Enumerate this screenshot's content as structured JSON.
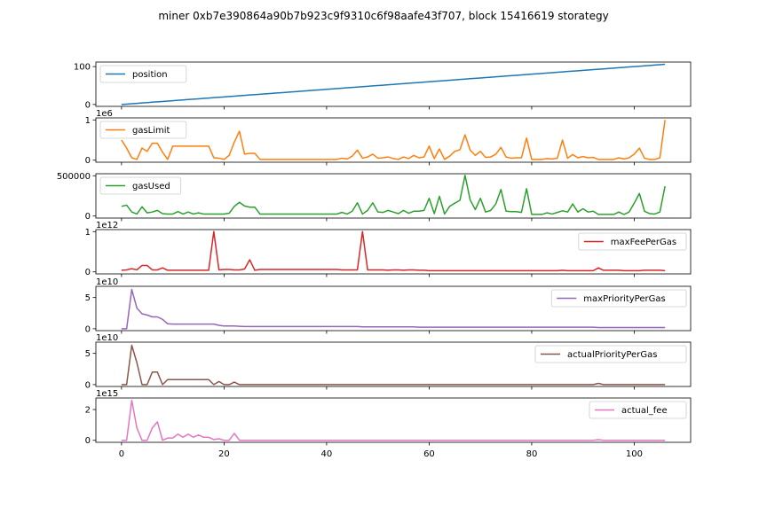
{
  "chart_data": {
    "type": "line",
    "title": "miner 0xb7e390864a90b7b923c9f9310c6f98aafe43f707, block 15416619 storategy",
    "x": {
      "ticks": [
        0,
        20,
        40,
        60,
        80,
        100
      ],
      "tick_labels": [
        "0",
        "20",
        "40",
        "60",
        "80",
        "100"
      ],
      "range": [
        -5,
        111
      ]
    },
    "grid": false,
    "subplots": [
      {
        "name": "position",
        "color": "#1f77b4",
        "legend": "top-left",
        "scale_label": "",
        "y_ticks": [
          0,
          100
        ],
        "y_tick_labels": [
          "0",
          "100"
        ],
        "y_range": [
          -5,
          112
        ],
        "values": [
          0,
          1,
          2,
          3,
          4,
          5,
          6,
          7,
          8,
          9,
          10,
          11,
          12,
          13,
          14,
          15,
          16,
          17,
          18,
          19,
          20,
          21,
          22,
          23,
          24,
          25,
          26,
          27,
          28,
          29,
          30,
          31,
          32,
          33,
          34,
          35,
          36,
          37,
          38,
          39,
          40,
          41,
          42,
          43,
          44,
          45,
          46,
          47,
          48,
          49,
          50,
          51,
          52,
          53,
          54,
          55,
          56,
          57,
          58,
          59,
          60,
          61,
          62,
          63,
          64,
          65,
          66,
          67,
          68,
          69,
          70,
          71,
          72,
          73,
          74,
          75,
          76,
          77,
          78,
          79,
          80,
          81,
          82,
          83,
          84,
          85,
          86,
          87,
          88,
          89,
          90,
          91,
          92,
          93,
          94,
          95,
          96,
          97,
          98,
          99,
          100,
          101,
          102,
          103,
          104,
          105,
          106
        ]
      },
      {
        "name": "gasLimit",
        "color": "#ff7f0e",
        "legend": "top-left",
        "scale_label": "1e6",
        "y_ticks": [
          0,
          1
        ],
        "y_tick_labels": [
          "0",
          "1"
        ],
        "y_range": [
          -0.05,
          1.05
        ],
        "values": [
          0.5,
          0.3,
          0.06,
          0.02,
          0.3,
          0.22,
          0.42,
          0.42,
          0.2,
          0.02,
          0.35,
          0.35,
          0.35,
          0.35,
          0.35,
          0.35,
          0.35,
          0.35,
          0.06,
          0.05,
          0.02,
          0.12,
          0.45,
          0.72,
          0.15,
          0.17,
          0.17,
          0.02,
          0.02,
          0.02,
          0.02,
          0.02,
          0.02,
          0.02,
          0.02,
          0.02,
          0.02,
          0.02,
          0.02,
          0.02,
          0.02,
          0.02,
          0.02,
          0.05,
          0.03,
          0.1,
          0.25,
          0.05,
          0.08,
          0.15,
          0.05,
          0.06,
          0.08,
          0.04,
          0.02,
          0.08,
          0.04,
          0.12,
          0.06,
          0.08,
          0.35,
          0.04,
          0.28,
          0.02,
          0.1,
          0.22,
          0.26,
          0.63,
          0.25,
          0.12,
          0.22,
          0.07,
          0.08,
          0.15,
          0.32,
          0.08,
          0.05,
          0.06,
          0.06,
          0.55,
          0.02,
          0.02,
          0.02,
          0.04,
          0.03,
          0.05,
          0.5,
          0.05,
          0.14,
          0.06,
          0.09,
          0.06,
          0.07,
          0.02,
          0.02,
          0.02,
          0.02,
          0.06,
          0.03,
          0.06,
          0.15,
          0.3,
          0.05,
          0.02,
          0.02,
          0.06,
          1.0
        ]
      },
      {
        "name": "gasUsed",
        "color": "#2ca02c",
        "legend": "top-left",
        "scale_label": "",
        "y_ticks": [
          0,
          500000
        ],
        "y_tick_labels": [
          "0",
          "500000"
        ],
        "y_range": [
          -25000,
          525000
        ],
        "values": [
          120000,
          135000,
          50000,
          25000,
          115000,
          40000,
          50000,
          70000,
          30000,
          25000,
          25000,
          55000,
          25000,
          50000,
          25000,
          40000,
          25000,
          25000,
          25000,
          25000,
          25000,
          35000,
          120000,
          170000,
          125000,
          110000,
          110000,
          25000,
          25000,
          25000,
          25000,
          25000,
          25000,
          25000,
          25000,
          25000,
          25000,
          25000,
          25000,
          25000,
          25000,
          25000,
          25000,
          45000,
          25000,
          60000,
          165000,
          25000,
          70000,
          165000,
          50000,
          45000,
          70000,
          50000,
          30000,
          70000,
          35000,
          60000,
          60000,
          70000,
          220000,
          30000,
          245000,
          25000,
          120000,
          160000,
          195000,
          505000,
          200000,
          80000,
          220000,
          50000,
          70000,
          150000,
          330000,
          60000,
          55000,
          55000,
          45000,
          340000,
          20000,
          20000,
          20000,
          40000,
          25000,
          45000,
          65000,
          50000,
          150000,
          50000,
          90000,
          50000,
          60000,
          20000,
          20000,
          20000,
          20000,
          50000,
          20000,
          50000,
          160000,
          280000,
          60000,
          30000,
          25000,
          50000,
          370000
        ]
      },
      {
        "name": "maxFeePerGas",
        "color": "#d62728",
        "legend": "top-right",
        "scale_label": "1e12",
        "y_ticks": [
          0,
          1
        ],
        "y_tick_labels": [
          "0",
          "1"
        ],
        "y_range": [
          -0.05,
          1.05
        ],
        "values": [
          0.04,
          0.05,
          0.08,
          0.05,
          0.16,
          0.16,
          0.05,
          0.05,
          0.1,
          0.04,
          0.04,
          0.04,
          0.04,
          0.04,
          0.04,
          0.04,
          0.04,
          0.04,
          1.0,
          0.05,
          0.06,
          0.06,
          0.05,
          0.05,
          0.07,
          0.3,
          0.04,
          0.06,
          0.06,
          0.06,
          0.06,
          0.06,
          0.06,
          0.06,
          0.06,
          0.06,
          0.06,
          0.06,
          0.06,
          0.06,
          0.06,
          0.06,
          0.06,
          0.05,
          0.05,
          0.05,
          0.05,
          1.0,
          0.05,
          0.05,
          0.05,
          0.05,
          0.04,
          0.05,
          0.05,
          0.04,
          0.05,
          0.05,
          0.04,
          0.04,
          0.03,
          0.03,
          0.03,
          0.03,
          0.03,
          0.03,
          0.03,
          0.03,
          0.03,
          0.03,
          0.03,
          0.03,
          0.03,
          0.03,
          0.03,
          0.03,
          0.03,
          0.03,
          0.03,
          0.03,
          0.03,
          0.03,
          0.03,
          0.03,
          0.03,
          0.03,
          0.04,
          0.03,
          0.03,
          0.03,
          0.03,
          0.03,
          0.03,
          0.1,
          0.04,
          0.04,
          0.04,
          0.04,
          0.03,
          0.03,
          0.03,
          0.03,
          0.04,
          0.04,
          0.04,
          0.04,
          0.03
        ]
      },
      {
        "name": "maxPriorityPerGas",
        "color": "#9467bd",
        "legend": "top-right",
        "scale_label": "1e10",
        "y_ticks": [
          0,
          5
        ],
        "y_tick_labels": [
          "0",
          "5"
        ],
        "y_range": [
          -0.3,
          6.8
        ],
        "values": [
          0.0,
          0.0,
          6.3,
          3.3,
          2.4,
          2.2,
          1.9,
          1.9,
          1.5,
          0.8,
          0.75,
          0.75,
          0.75,
          0.75,
          0.75,
          0.75,
          0.75,
          0.75,
          0.75,
          0.55,
          0.45,
          0.45,
          0.45,
          0.4,
          0.35,
          0.35,
          0.35,
          0.35,
          0.35,
          0.35,
          0.35,
          0.35,
          0.35,
          0.35,
          0.35,
          0.35,
          0.35,
          0.35,
          0.35,
          0.35,
          0.35,
          0.35,
          0.35,
          0.35,
          0.35,
          0.35,
          0.35,
          0.3,
          0.3,
          0.3,
          0.3,
          0.3,
          0.3,
          0.3,
          0.3,
          0.3,
          0.3,
          0.3,
          0.25,
          0.25,
          0.25,
          0.25,
          0.25,
          0.25,
          0.25,
          0.25,
          0.25,
          0.25,
          0.25,
          0.25,
          0.25,
          0.25,
          0.25,
          0.25,
          0.25,
          0.25,
          0.25,
          0.25,
          0.25,
          0.25,
          0.25,
          0.25,
          0.25,
          0.25,
          0.25,
          0.25,
          0.25,
          0.25,
          0.25,
          0.25,
          0.25,
          0.25,
          0.25,
          0.2,
          0.2,
          0.2,
          0.2,
          0.2,
          0.2,
          0.2,
          0.2,
          0.2,
          0.2,
          0.2,
          0.2,
          0.2,
          0.2
        ]
      },
      {
        "name": "actualPriorityPerGas",
        "color": "#8c564b",
        "legend": "top-right",
        "scale_label": "1e10",
        "y_ticks": [
          0,
          5
        ],
        "y_tick_labels": [
          "0",
          "5"
        ],
        "y_range": [
          -0.3,
          6.8
        ],
        "values": [
          0.0,
          0.0,
          6.3,
          3.5,
          0.0,
          0.0,
          2.0,
          2.0,
          0.0,
          0.8,
          0.8,
          0.8,
          0.8,
          0.8,
          0.8,
          0.8,
          0.8,
          0.8,
          0.0,
          0.5,
          0.0,
          0.0,
          0.4,
          0.0,
          0.0,
          0.0,
          0.0,
          0.0,
          0.0,
          0.0,
          0.0,
          0.0,
          0.0,
          0.0,
          0.0,
          0.0,
          0.0,
          0.0,
          0.0,
          0.0,
          0.0,
          0.0,
          0.0,
          0.0,
          0.0,
          0.0,
          0.0,
          0.0,
          0.0,
          0.0,
          0.0,
          0.0,
          0.0,
          0.0,
          0.0,
          0.0,
          0.0,
          0.0,
          0.0,
          0.0,
          0.0,
          0.0,
          0.0,
          0.0,
          0.0,
          0.0,
          0.0,
          0.0,
          0.0,
          0.0,
          0.0,
          0.0,
          0.0,
          0.0,
          0.0,
          0.0,
          0.0,
          0.0,
          0.0,
          0.0,
          0.0,
          0.0,
          0.0,
          0.0,
          0.0,
          0.0,
          0.0,
          0.0,
          0.0,
          0.0,
          0.0,
          0.0,
          0.0,
          0.2,
          0.0,
          0.0,
          0.0,
          0.0,
          0.0,
          0.0,
          0.0,
          0.0,
          0.0,
          0.0,
          0.0,
          0.0,
          0.0
        ]
      },
      {
        "name": "actual_fee",
        "color": "#e377c2",
        "legend": "top-right",
        "scale_label": "1e15",
        "y_ticks": [
          0,
          2
        ],
        "y_tick_labels": [
          "0",
          "2"
        ],
        "y_range": [
          -0.13,
          2.75
        ],
        "values": [
          0.0,
          0.0,
          2.6,
          0.8,
          0.0,
          0.0,
          0.8,
          1.2,
          0.0,
          0.15,
          0.15,
          0.4,
          0.2,
          0.4,
          0.2,
          0.35,
          0.2,
          0.2,
          0.05,
          0.1,
          0.0,
          0.0,
          0.45,
          0.0,
          0.0,
          0.0,
          0.0,
          0.0,
          0.0,
          0.0,
          0.0,
          0.0,
          0.0,
          0.0,
          0.0,
          0.0,
          0.0,
          0.0,
          0.0,
          0.0,
          0.0,
          0.0,
          0.0,
          0.0,
          0.0,
          0.0,
          0.0,
          0.0,
          0.0,
          0.0,
          0.0,
          0.0,
          0.0,
          0.0,
          0.0,
          0.0,
          0.0,
          0.0,
          0.0,
          0.0,
          0.0,
          0.0,
          0.0,
          0.0,
          0.0,
          0.0,
          0.0,
          0.0,
          0.0,
          0.0,
          0.0,
          0.0,
          0.0,
          0.0,
          0.0,
          0.0,
          0.0,
          0.0,
          0.0,
          0.0,
          0.0,
          0.0,
          0.0,
          0.0,
          0.0,
          0.0,
          0.0,
          0.0,
          0.0,
          0.0,
          0.0,
          0.0,
          0.0,
          0.04,
          0.0,
          0.0,
          0.0,
          0.0,
          0.0,
          0.0,
          0.0,
          0.0,
          0.0,
          0.0,
          0.0,
          0.0,
          0.0
        ]
      }
    ]
  }
}
